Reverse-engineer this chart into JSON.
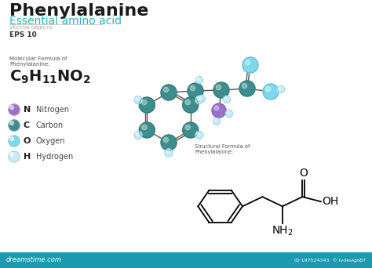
{
  "title": "Phenylalanine",
  "subtitle": "Essential amino acid",
  "label1": "VECTOR OBJECTS",
  "label2": "EPS 10",
  "mol_formula_label": "Molecular Formula of\nPhenylalanine:",
  "struct_formula_label": "Structural Formula of\nPhenylalanine:",
  "legend": [
    {
      "symbol": "N",
      "name": "Nitrogen",
      "color": "#9b72c8"
    },
    {
      "symbol": "C",
      "name": "Carbon",
      "color": "#3d8d8d"
    },
    {
      "symbol": "O",
      "name": "Oxygen",
      "color": "#7dd8ec"
    },
    {
      "symbol": "H",
      "name": "Hydrogen",
      "color": "#c5ecf8"
    }
  ],
  "title_color": "#1a1a1a",
  "subtitle_color": "#2db5b5",
  "small_text_color": "#999999",
  "bottom_bar_color": "#1e9ab0",
  "C_color": "#3d8d8d",
  "N_color": "#9b72c8",
  "O_color": "#7dd8ec",
  "H_color": "#c5ecf8",
  "bond_color": "#555555"
}
